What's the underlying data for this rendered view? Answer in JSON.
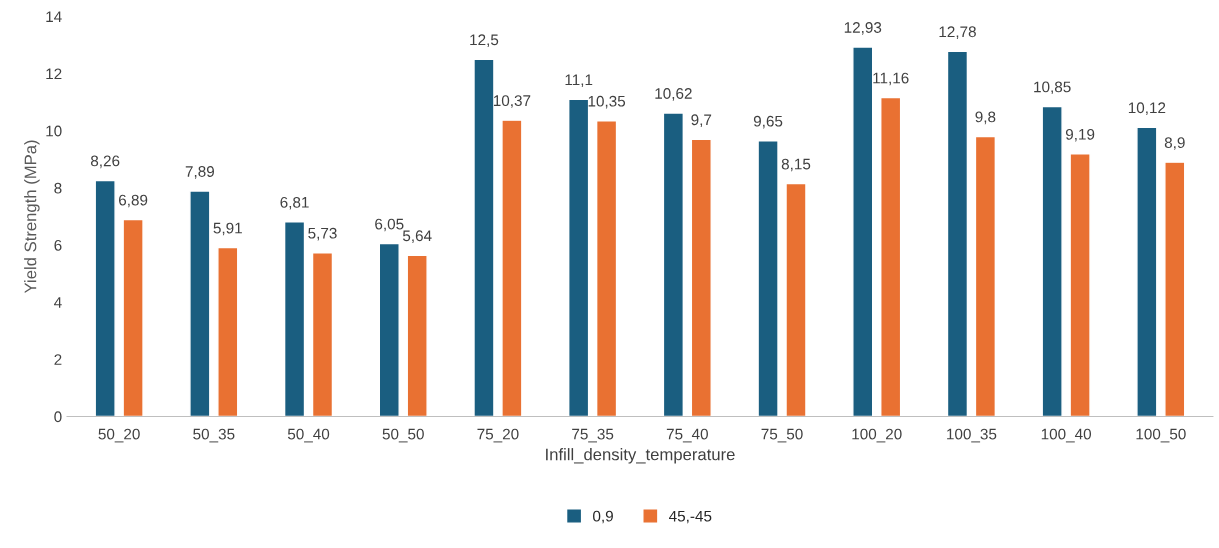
{
  "chart_data": {
    "type": "bar",
    "xlabel": "Infill_density_temperature",
    "ylabel": "Yield Strength (MPa)",
    "categories": [
      "50_20",
      "50_35",
      "50_40",
      "50_50",
      "75_20",
      "75_35",
      "75_40",
      "75_50",
      "100_20",
      "100_35",
      "100_40",
      "100_50"
    ],
    "series": [
      {
        "name": "0,9",
        "color": "#1a5e80",
        "values": [
          8.26,
          7.89,
          6.81,
          6.05,
          12.5,
          11.1,
          10.62,
          9.65,
          12.93,
          12.78,
          10.85,
          10.12
        ],
        "value_labels": [
          "8,26",
          "7,89",
          "6,81",
          "6,05",
          "12,5",
          "11,1",
          "10,62",
          "9,65",
          "12,93",
          "12,78",
          "10,85",
          "10,12"
        ]
      },
      {
        "name": "45,-45",
        "color": "#e97132",
        "values": [
          6.89,
          5.91,
          5.73,
          5.64,
          10.37,
          10.35,
          9.7,
          8.15,
          11.16,
          9.8,
          9.19,
          8.9
        ],
        "value_labels": [
          "6,89",
          "5,91",
          "5,73",
          "5,64",
          "10,37",
          "10,35",
          "9,7",
          "8,15",
          "11,16",
          "9,8",
          "9,19",
          "8,9"
        ]
      }
    ],
    "ylim": [
      0,
      14
    ],
    "yticks": [
      0,
      2,
      4,
      6,
      8,
      10,
      12,
      14
    ],
    "grid": false,
    "legend": "bottom"
  }
}
